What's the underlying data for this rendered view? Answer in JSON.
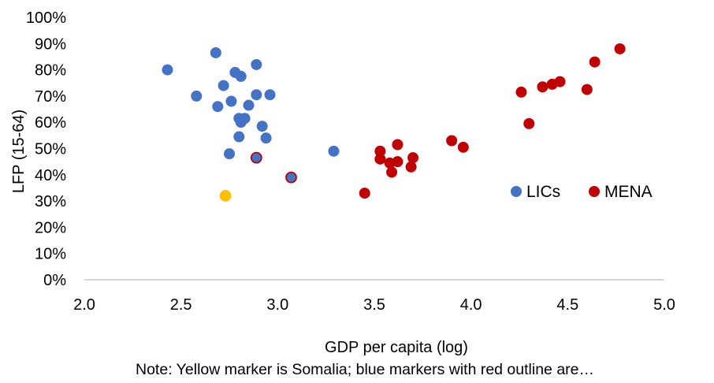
{
  "chart_data": {
    "type": "scatter",
    "xlabel": "GDP per capita (log)",
    "ylabel": "LFP (15-64)",
    "xlim": [
      2.0,
      5.0
    ],
    "ylim": [
      0,
      100
    ],
    "xticks": [
      2.0,
      2.5,
      3.0,
      3.5,
      4.0,
      4.5,
      5.0
    ],
    "xtick_labels": [
      "2.0",
      "2.5",
      "3.0",
      "3.5",
      "4.0",
      "4.5",
      "5.0"
    ],
    "yticks": [
      0,
      10,
      20,
      30,
      40,
      50,
      60,
      70,
      80,
      90,
      100
    ],
    "ytick_labels": [
      "0%",
      "10%",
      "20%",
      "30%",
      "40%",
      "50%",
      "60%",
      "70%",
      "80%",
      "90%",
      "100%"
    ],
    "grid": false,
    "legend_position": "right",
    "series": [
      {
        "name": "LICs",
        "color": "#4472C4",
        "points": [
          {
            "x": 2.43,
            "y": 80
          },
          {
            "x": 2.68,
            "y": 86.5
          },
          {
            "x": 2.89,
            "y": 82
          },
          {
            "x": 2.78,
            "y": 79
          },
          {
            "x": 2.81,
            "y": 77.5
          },
          {
            "x": 2.72,
            "y": 74
          },
          {
            "x": 2.58,
            "y": 70
          },
          {
            "x": 2.89,
            "y": 70.5
          },
          {
            "x": 2.96,
            "y": 70.5
          },
          {
            "x": 2.76,
            "y": 68
          },
          {
            "x": 2.69,
            "y": 66
          },
          {
            "x": 2.85,
            "y": 66.5
          },
          {
            "x": 2.8,
            "y": 61.5
          },
          {
            "x": 2.83,
            "y": 61.5
          },
          {
            "x": 2.81,
            "y": 60
          },
          {
            "x": 2.92,
            "y": 58.5
          },
          {
            "x": 2.8,
            "y": 54.5
          },
          {
            "x": 2.94,
            "y": 54
          },
          {
            "x": 3.29,
            "y": 49
          },
          {
            "x": 2.75,
            "y": 48
          }
        ]
      },
      {
        "name": "MENA",
        "color": "#C00000",
        "points": [
          {
            "x": 4.77,
            "y": 88
          },
          {
            "x": 4.64,
            "y": 83
          },
          {
            "x": 4.46,
            "y": 75.5
          },
          {
            "x": 4.42,
            "y": 74.5
          },
          {
            "x": 4.37,
            "y": 73.5
          },
          {
            "x": 4.6,
            "y": 72.5
          },
          {
            "x": 4.26,
            "y": 71.5
          },
          {
            "x": 4.3,
            "y": 59.5
          },
          {
            "x": 3.9,
            "y": 53
          },
          {
            "x": 3.96,
            "y": 50.5
          },
          {
            "x": 3.62,
            "y": 51.5
          },
          {
            "x": 3.53,
            "y": 49
          },
          {
            "x": 3.53,
            "y": 46
          },
          {
            "x": 3.58,
            "y": 44.5
          },
          {
            "x": 3.62,
            "y": 45
          },
          {
            "x": 3.7,
            "y": 46.5
          },
          {
            "x": 3.69,
            "y": 43
          },
          {
            "x": 3.59,
            "y": 41
          },
          {
            "x": 3.45,
            "y": 33
          }
        ]
      }
    ],
    "special_points": [
      {
        "label": "Somalia",
        "x": 2.73,
        "y": 32,
        "fill": "#FFC000",
        "stroke": "#FFC000"
      },
      {
        "label": "blue-red-outline",
        "x": 2.89,
        "y": 46.5,
        "fill": "#4472C4",
        "stroke": "#C00000"
      },
      {
        "label": "blue-red-outline",
        "x": 3.07,
        "y": 39,
        "fill": "#4472C4",
        "stroke": "#C00000"
      }
    ]
  },
  "note": "Note: Yellow marker is Somalia; blue markers with red outline are…",
  "colors": {
    "axis": "#bfbfbf",
    "lics": "#4472C4",
    "mena": "#C00000",
    "somalia": "#FFC000"
  }
}
